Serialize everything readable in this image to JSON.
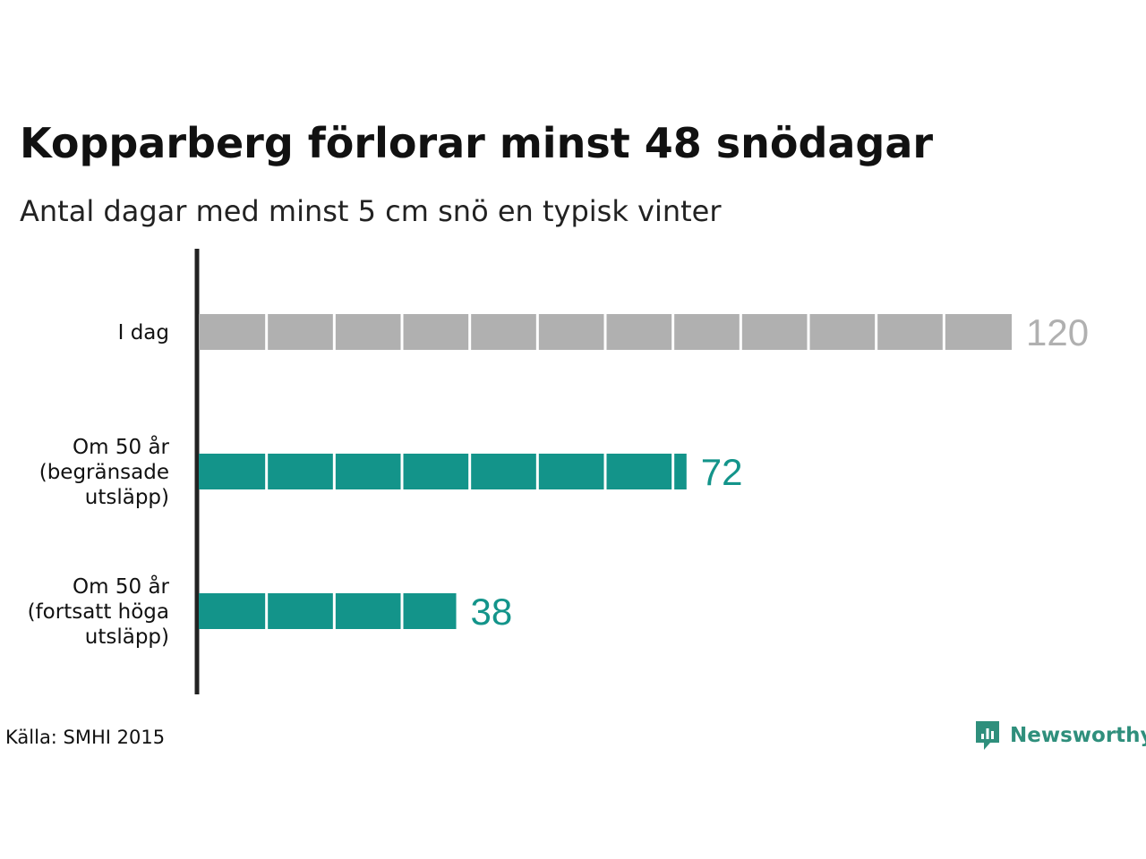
{
  "chart_data": {
    "type": "bar",
    "orientation": "horizontal",
    "title": "Kopparberg förlorar minst 48 snödagar",
    "subtitle": "Antal dagar med minst 5 cm snö en typisk vinter",
    "categories": [
      [
        "I dag"
      ],
      [
        "Om 50 år",
        "(begränsade",
        "utsläpp)"
      ],
      [
        "Om 50 år",
        "(fortsatt höga",
        "utsläpp)"
      ]
    ],
    "values": [
      120,
      72,
      38
    ],
    "value_labels": [
      "120",
      "72",
      "38"
    ],
    "bar_colors": [
      "#b0b0b0",
      "#13948a",
      "#13948a"
    ],
    "segment_size": 10,
    "xlim": [
      0,
      120
    ],
    "grid": false,
    "legend": "none"
  },
  "source": "Källa: SMHI 2015",
  "logo": {
    "text": "Newsworthy",
    "icon": "newsworthy-chart-icon",
    "color": "#2f8f7c"
  }
}
